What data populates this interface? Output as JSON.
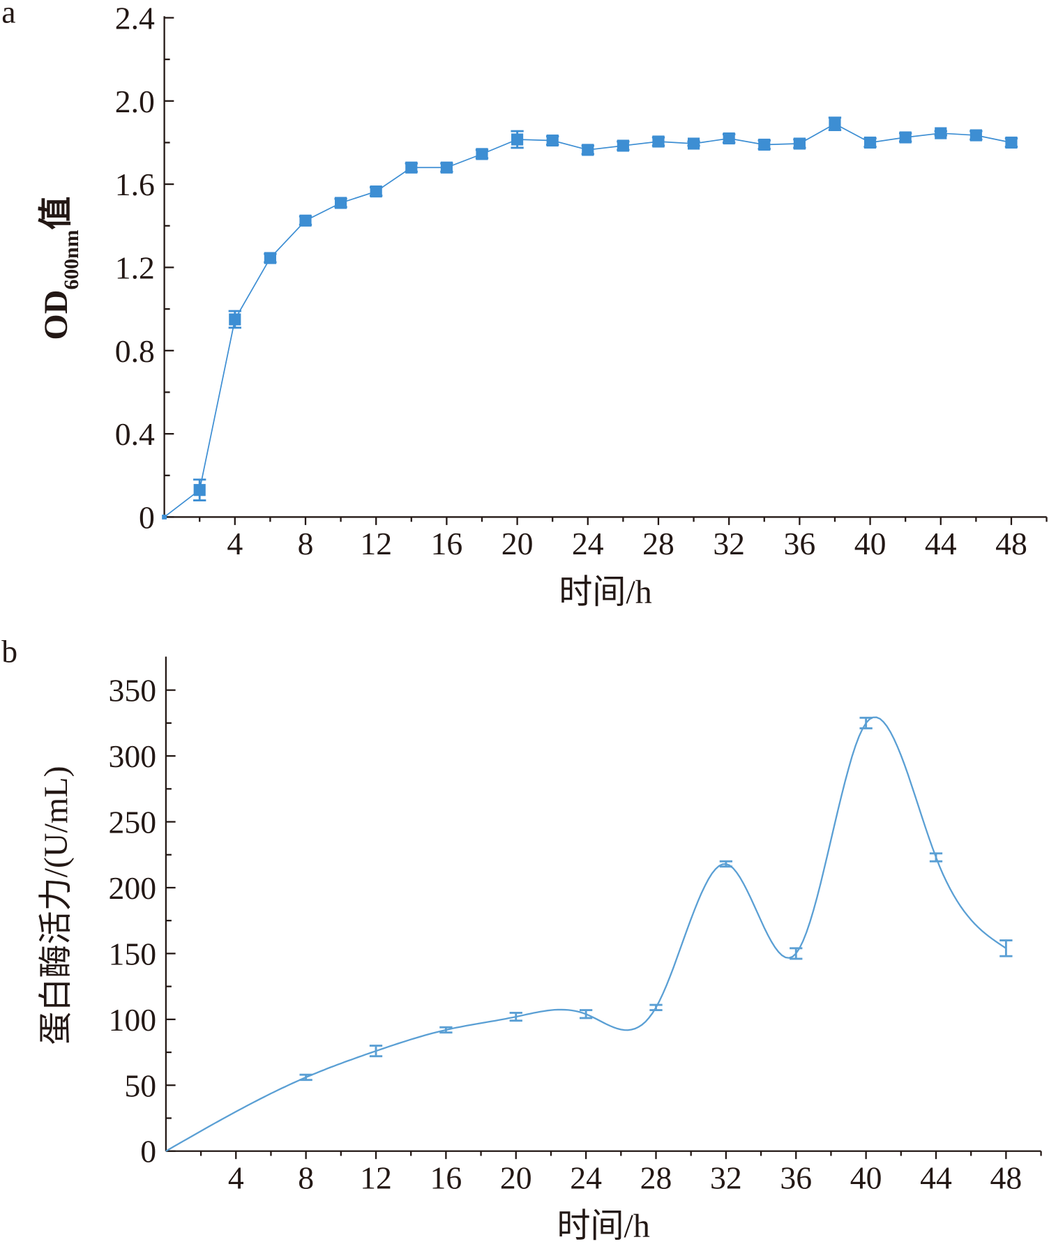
{
  "chart_data": [
    {
      "type": "line",
      "panel_label": "a",
      "title": "",
      "xlabel": "时间/h",
      "ylabel": {
        "main": "OD",
        "sub": "600nm",
        "suffix": "值"
      },
      "xlim": [
        0,
        50
      ],
      "ylim": [
        0,
        2.4
      ],
      "x_ticks": [
        4,
        8,
        12,
        16,
        20,
        24,
        28,
        32,
        36,
        40,
        44,
        48
      ],
      "y_ticks": [
        0,
        0.4,
        0.8,
        1.2,
        1.6,
        2.0,
        2.4
      ],
      "y_tick_labels": [
        "0",
        "0.4",
        "0.8",
        "1.2",
        "1.6",
        "2.0",
        "2.4"
      ],
      "grid": false,
      "series": [
        {
          "name": "OD600nm",
          "marker": "square",
          "color": "#3d8ed3",
          "x": [
            0,
            2,
            4,
            6,
            8,
            10,
            12,
            14,
            16,
            18,
            20,
            22,
            24,
            26,
            28,
            30,
            32,
            34,
            36,
            38,
            40,
            42,
            44,
            46,
            48
          ],
          "y": [
            0,
            0.13,
            0.95,
            1.245,
            1.425,
            1.51,
            1.565,
            1.68,
            1.68,
            1.745,
            1.815,
            1.81,
            1.765,
            1.785,
            1.805,
            1.795,
            1.82,
            1.79,
            1.795,
            1.89,
            1.8,
            1.825,
            1.845,
            1.835,
            1.8
          ],
          "error": [
            0,
            0.05,
            0.04,
            0.02,
            0.02,
            0.02,
            0.02,
            0.02,
            0.02,
            0.02,
            0.04,
            0.02,
            0.02,
            0.02,
            0.02,
            0.01,
            0.02,
            0.02,
            0.02,
            0.03,
            0.02,
            0.02,
            0.01,
            0.02,
            0.02
          ]
        }
      ]
    },
    {
      "type": "line",
      "panel_label": "b",
      "title": "",
      "xlabel": "时间/h",
      "ylabel": "蛋白酶活力/(U/mL)",
      "xlim": [
        0,
        50
      ],
      "ylim": [
        0,
        375
      ],
      "x_ticks": [
        4,
        8,
        12,
        16,
        20,
        24,
        28,
        32,
        36,
        40,
        44,
        48
      ],
      "y_ticks": [
        0,
        50,
        100,
        150,
        200,
        250,
        300,
        350
      ],
      "y_tick_labels": [
        "0",
        "50",
        "100",
        "150",
        "200",
        "250",
        "300",
        "350"
      ],
      "grid": false,
      "series": [
        {
          "name": "蛋白酶活力",
          "marker": "none",
          "smooth": true,
          "color": "#5a9fd4",
          "x": [
            0,
            8,
            12,
            16,
            20,
            24,
            28,
            32,
            36,
            40,
            44,
            48
          ],
          "y": [
            0,
            56,
            76,
            92,
            102,
            104,
            109,
            218,
            150,
            325,
            223,
            154
          ],
          "error": [
            0,
            2,
            4,
            2,
            3,
            3,
            2,
            2,
            4,
            4,
            3,
            6
          ]
        }
      ]
    }
  ]
}
